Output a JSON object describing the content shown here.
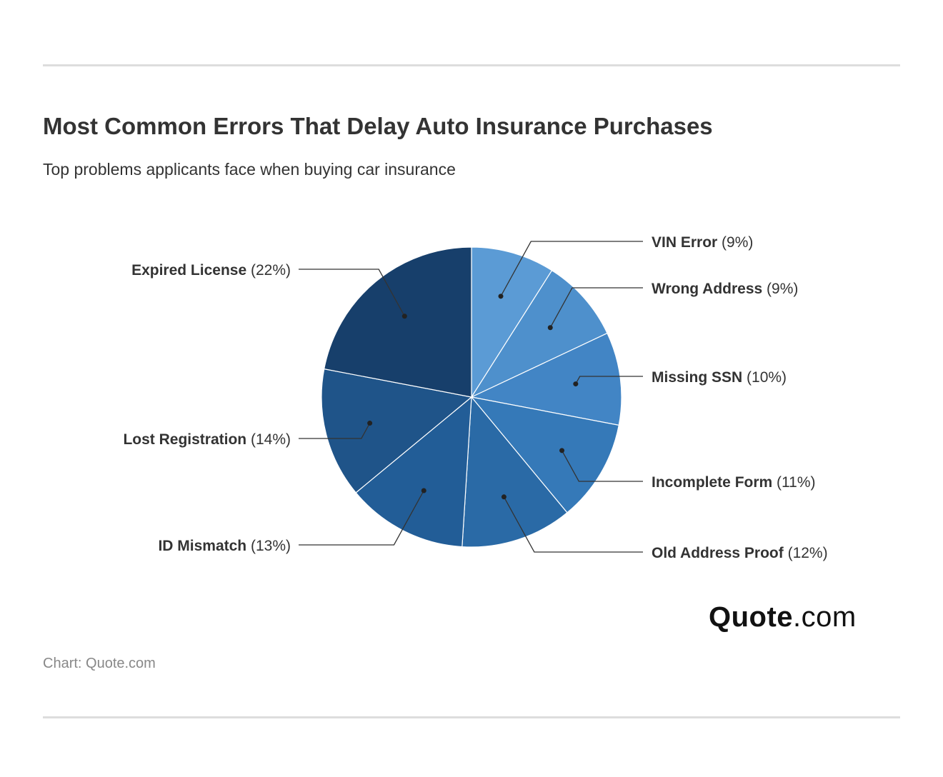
{
  "title": "Most Common Errors That Delay Auto Insurance Purchases",
  "subtitle": "Top problems applicants face when buying car insurance",
  "source": "Chart: Quote.com",
  "logo": {
    "brand": "Quote",
    "tld": ".com"
  },
  "chart_data": {
    "type": "pie",
    "title": "Most Common Errors That Delay Auto Insurance Purchases",
    "subtitle": "Top problems applicants face when buying car insurance",
    "unit": "%",
    "slices": [
      {
        "label": "VIN Error",
        "value": 9,
        "pct_label": "(9%)",
        "color": "#5b9bd5"
      },
      {
        "label": "Wrong Address",
        "value": 9,
        "pct_label": "(9%)",
        "color": "#4e90cc"
      },
      {
        "label": "Missing SSN",
        "value": 10,
        "pct_label": "(10%)",
        "color": "#4285c5"
      },
      {
        "label": "Incomplete Form",
        "value": 11,
        "pct_label": "(11%)",
        "color": "#3579b8"
      },
      {
        "label": "Old Address Proof",
        "value": 12,
        "pct_label": "(12%)",
        "color": "#2a6aa6"
      },
      {
        "label": "ID Mismatch",
        "value": 13,
        "pct_label": "(13%)",
        "color": "#225d97"
      },
      {
        "label": "Lost Registration",
        "value": 14,
        "pct_label": "(14%)",
        "color": "#1f5489"
      },
      {
        "label": "Expired License",
        "value": 22,
        "pct_label": "(22%)",
        "color": "#173f6b"
      }
    ],
    "legend": "none",
    "labels": "outside-with-leaders"
  }
}
